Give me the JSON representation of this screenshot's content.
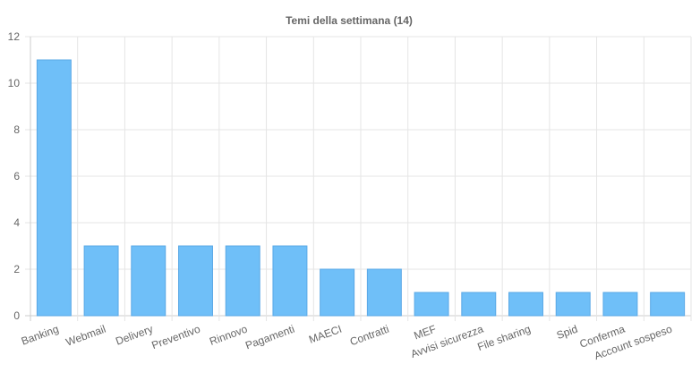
{
  "chart_data": {
    "type": "bar",
    "title": "Temi della settimana (14)",
    "xlabel": "",
    "ylabel": "",
    "categories": [
      "Banking",
      "Webmail",
      "Delivery",
      "Preventivo",
      "Rinnovo",
      "Pagamenti",
      "MAECI",
      "Contratti",
      "MEF",
      "Avvisi sicurezza",
      "File sharing",
      "Spid",
      "Conferma",
      "Account sospeso"
    ],
    "values": [
      11,
      3,
      3,
      3,
      3,
      3,
      2,
      2,
      1,
      1,
      1,
      1,
      1,
      1
    ],
    "ylim": [
      0,
      12
    ],
    "yticks": [
      "0",
      "2",
      "4",
      "6",
      "8",
      "10",
      "12"
    ],
    "grid": true,
    "legend": "none",
    "colors": {
      "bar_fill": "#6fbff8",
      "bar_border": "#5aa8e6",
      "grid": "#e5e5e5",
      "text": "#666666"
    }
  }
}
